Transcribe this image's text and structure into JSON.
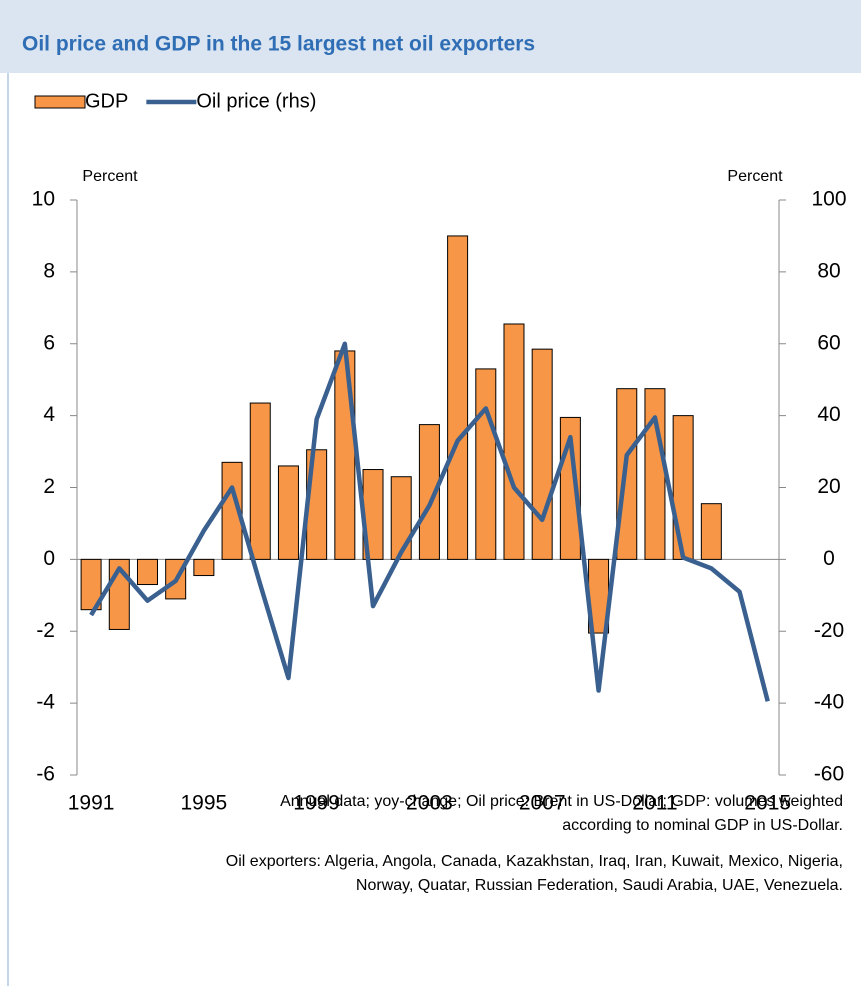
{
  "chart_data": {
    "type": "bar-line",
    "title": "Oil price and GDP in the 15 largest net oil exporters",
    "y_label": "Percent",
    "y2_label": "Percent",
    "x": [
      1991,
      1992,
      1993,
      1994,
      1995,
      1996,
      1997,
      1998,
      1999,
      2000,
      2001,
      2002,
      2003,
      2004,
      2005,
      2006,
      2007,
      2008,
      2009,
      2010,
      2011,
      2012,
      2013,
      2014,
      2015
    ],
    "xlim": [
      1990.5,
      2015.4
    ],
    "xticks": [
      1991,
      1995,
      1999,
      2003,
      2007,
      2011,
      2015
    ],
    "ylim": [
      -6,
      10
    ],
    "yticks": [
      -6,
      -4,
      -2,
      0,
      2,
      4,
      6,
      8,
      10
    ],
    "y2lim": [
      -60,
      100
    ],
    "y2ticks": [
      -60,
      -40,
      -20,
      0,
      20,
      40,
      60,
      80,
      100
    ],
    "legend": "top-left",
    "series": [
      {
        "name": "GDP",
        "type": "bar",
        "color": "#f79646",
        "values": [
          -1.4,
          -1.95,
          -0.7,
          -1.1,
          -0.45,
          2.7,
          4.35,
          2.6,
          3.05,
          5.8,
          2.5,
          2.3,
          3.75,
          9.0,
          5.3,
          6.55,
          5.85,
          3.95,
          -2.05,
          4.75,
          4.75,
          4.0,
          1.55,
          null,
          null
        ]
      },
      {
        "name": "Oil price (rhs)",
        "type": "line",
        "axis": "y2",
        "color": "#3a6090",
        "values": [
          -15.5,
          -2.5,
          -11.5,
          -6,
          8,
          20,
          -7,
          -33,
          39,
          60,
          -13,
          2,
          15,
          33,
          42,
          20,
          11,
          34,
          -36.5,
          29,
          39.5,
          0.5,
          -2.5,
          -9,
          -39.5
        ]
      }
    ],
    "notes": [
      "Annual data; yoy-change; Oil price: Brent in US-Dollar; GDP: volumes weighted",
      "according to nominal GDP in US-Dollar.",
      "Oil exporters: Algeria, Angola, Canada, Kazakhstan, Iraq, Iran, Kuwait, Mexico, Nigeria,",
      "Norway, Quatar, Russian Federation, Saudi Arabia, UAE, Venezuela."
    ]
  }
}
